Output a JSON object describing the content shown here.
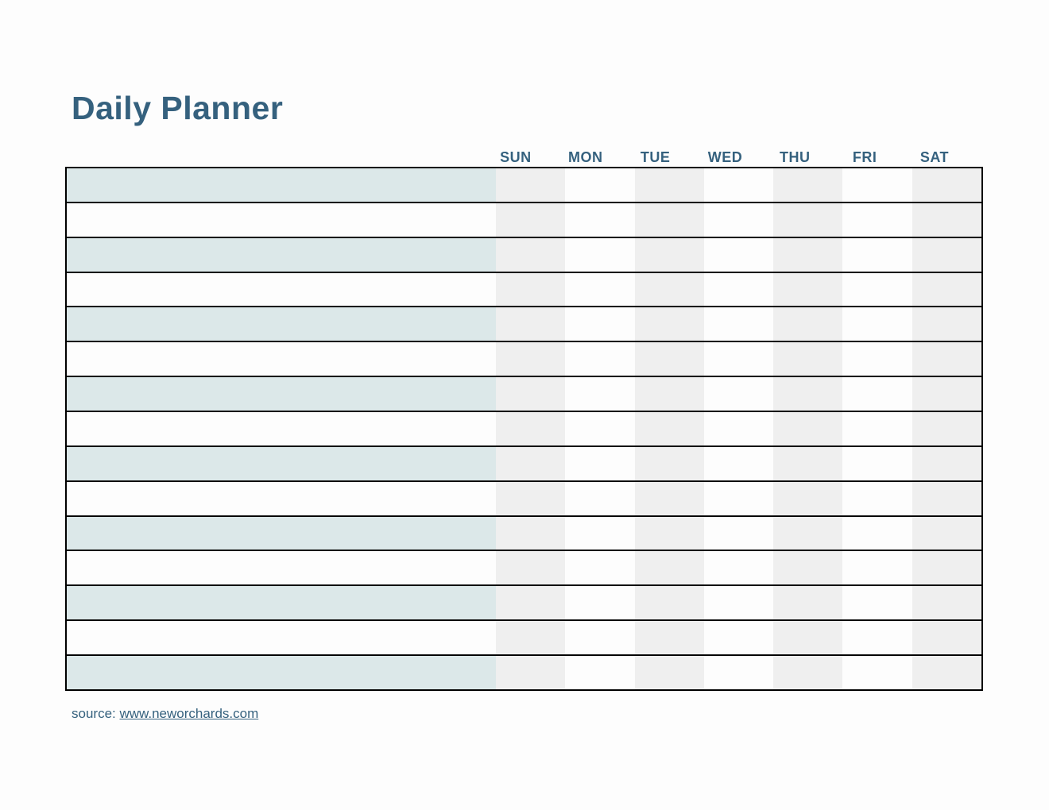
{
  "title": "Daily Planner",
  "days": [
    "SUN",
    "MON",
    "TUE",
    "WED",
    "THU",
    "FRI",
    "SAT"
  ],
  "table": {
    "row_count": 15,
    "cells_empty": true
  },
  "source": {
    "label": "source:",
    "link_text": "www.neworchards.com"
  },
  "colors": {
    "accent_blue": "#35617e",
    "row_teal": "#dce8e9",
    "column_gray": "#efefef",
    "grid_line": "#000000",
    "page_bg": "#fdfdfd"
  }
}
